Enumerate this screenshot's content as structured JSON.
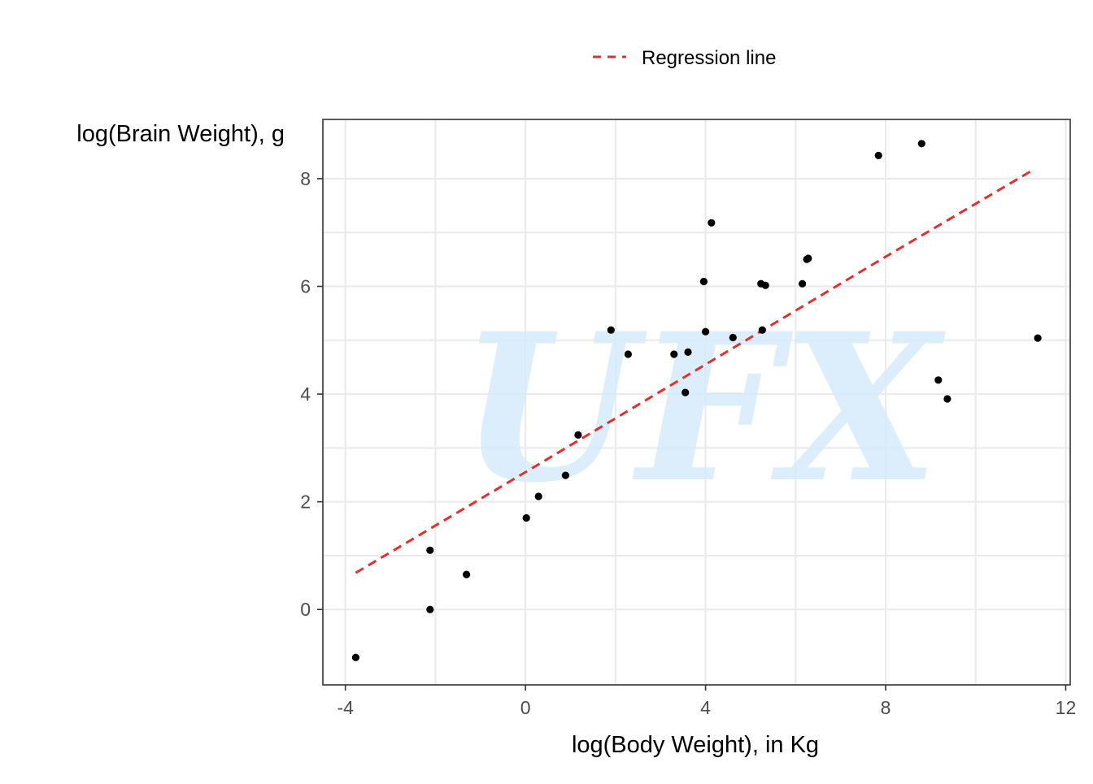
{
  "chart_data": {
    "type": "scatter",
    "title": "",
    "xlabel": "log(Body Weight), in Kg",
    "ylabel": "log(Brain Weight), g",
    "xlim": [
      -4.5,
      12.1
    ],
    "ylim": [
      -1.4,
      9.1
    ],
    "x_ticks": [
      -4,
      0,
      4,
      8,
      12
    ],
    "y_ticks": [
      0,
      2,
      4,
      6,
      8
    ],
    "grid": true,
    "legend": {
      "position": "top",
      "entries": [
        {
          "label": "Regression line",
          "style": "dashed",
          "color": "#e03030"
        }
      ]
    },
    "watermark": "UFX",
    "series": [
      {
        "type": "scatter",
        "color": "#000000",
        "points": [
          {
            "x": -3.77,
            "y": -0.89
          },
          {
            "x": -2.12,
            "y": 0.0
          },
          {
            "x": -2.12,
            "y": 1.1
          },
          {
            "x": -1.31,
            "y": 0.65
          },
          {
            "x": 0.02,
            "y": 1.7
          },
          {
            "x": 0.29,
            "y": 2.1
          },
          {
            "x": 0.89,
            "y": 2.49
          },
          {
            "x": 1.17,
            "y": 3.24
          },
          {
            "x": 1.9,
            "y": 5.19
          },
          {
            "x": 2.28,
            "y": 4.74
          },
          {
            "x": 3.3,
            "y": 4.74
          },
          {
            "x": 3.55,
            "y": 4.03
          },
          {
            "x": 3.61,
            "y": 4.78
          },
          {
            "x": 3.96,
            "y": 6.09
          },
          {
            "x": 4.0,
            "y": 5.16
          },
          {
            "x": 4.13,
            "y": 7.18
          },
          {
            "x": 4.61,
            "y": 5.05
          },
          {
            "x": 5.23,
            "y": 6.05
          },
          {
            "x": 5.26,
            "y": 5.19
          },
          {
            "x": 5.33,
            "y": 6.02
          },
          {
            "x": 6.15,
            "y": 6.05
          },
          {
            "x": 6.25,
            "y": 6.5
          },
          {
            "x": 6.28,
            "y": 6.52
          },
          {
            "x": 7.84,
            "y": 8.43
          },
          {
            "x": 8.8,
            "y": 8.65
          },
          {
            "x": 9.17,
            "y": 4.26
          },
          {
            "x": 9.37,
            "y": 3.91
          },
          {
            "x": 11.38,
            "y": 5.04
          }
        ]
      },
      {
        "type": "line",
        "name": "Regression line",
        "style": "dashed",
        "color": "#e03030",
        "points": [
          {
            "x": -3.77,
            "y": 0.68
          },
          {
            "x": 0.0,
            "y": 2.55
          },
          {
            "x": 4.0,
            "y": 4.55
          },
          {
            "x": 8.0,
            "y": 6.55
          },
          {
            "x": 11.25,
            "y": 8.15
          }
        ]
      }
    ]
  }
}
